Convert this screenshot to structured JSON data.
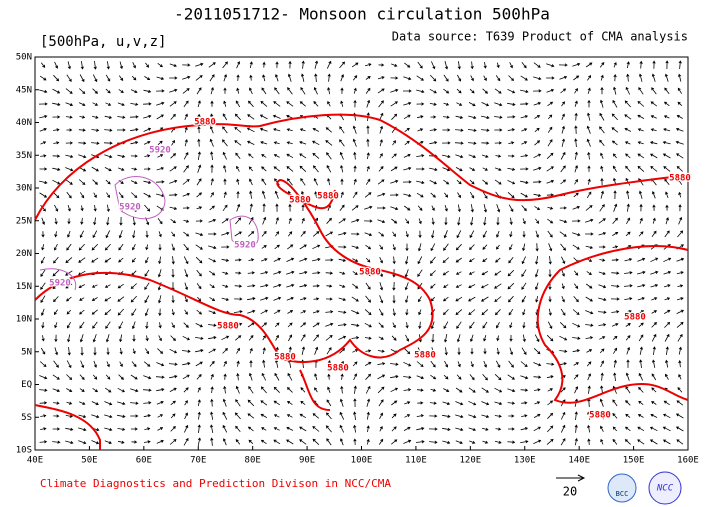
{
  "header": {
    "title": "-2011051712- Monsoon circulation 500hPa",
    "variables": "[500hPa, u,v,z]",
    "source": "Data source: T639 Product of CMA analysis"
  },
  "map": {
    "lat_labels": [
      "50N",
      "45N",
      "40N",
      "35N",
      "30N",
      "25N",
      "20N",
      "15N",
      "10N",
      "5N",
      "EQ",
      "5S",
      "10S"
    ],
    "lon_labels": [
      "40E",
      "50E",
      "60E",
      "70E",
      "80E",
      "90E",
      "100E",
      "110E",
      "120E",
      "130E",
      "140E",
      "150E",
      "160E"
    ],
    "contour_labels": [
      "5880",
      "5920",
      "5920",
      "5920",
      "5880",
      "5880",
      "5880",
      "5880",
      "5880",
      "5880",
      "5880",
      "5880",
      "5880",
      "5880",
      "5920"
    ]
  },
  "footer": {
    "credit": "Climate Diagnostics and Prediction Divison in NCC/CMA",
    "reference_vector": "20",
    "logos": [
      "BCC",
      "NCC"
    ]
  }
}
